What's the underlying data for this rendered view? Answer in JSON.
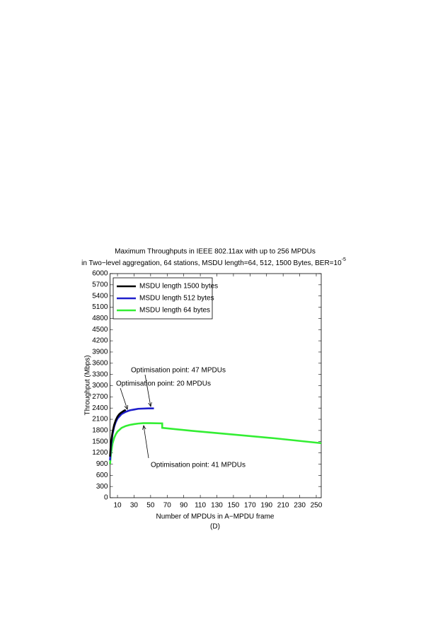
{
  "chart_data": {
    "type": "line",
    "title": "Maximum Throughputs in IEEE 802.11ax with up to 256 MPDUs",
    "subtitle": "in Two−level aggregation, 64 stations, MSDU length=64, 512, 1500 Bytes, BER=10",
    "subtitle_superscript": "-5",
    "x_label": "Number of MPDUs in A−MPDU frame",
    "y_label": "Throughput (Mbps)",
    "caption": "(D)",
    "xlim": [
      1,
      256
    ],
    "xticks": [
      10,
      30,
      50,
      70,
      90,
      110,
      130,
      150,
      170,
      190,
      210,
      230,
      250
    ],
    "ylim": [
      0,
      6000
    ],
    "yticks": [
      0,
      300,
      600,
      900,
      1200,
      1500,
      1800,
      2100,
      2400,
      2700,
      3000,
      3300,
      3600,
      3900,
      4200,
      4500,
      4800,
      5100,
      5400,
      5700,
      6000
    ],
    "legend": "upper left",
    "series": [
      {
        "name": "MSDU length 1500 bytes",
        "color": "#000000",
        "x": [
          1,
          2,
          4,
          6,
          8,
          10,
          12,
          14,
          16,
          18,
          20
        ],
        "values": [
          1100,
          1450,
          1750,
          1950,
          2080,
          2170,
          2230,
          2270,
          2300,
          2330,
          2350
        ]
      },
      {
        "name": "MSDU length 512 bytes",
        "color": "#1f1fcc",
        "x": [
          1,
          2,
          4,
          6,
          8,
          10,
          15,
          20,
          25,
          30,
          35,
          40,
          47,
          54
        ],
        "values": [
          1000,
          1350,
          1700,
          1900,
          2030,
          2120,
          2240,
          2300,
          2340,
          2360,
          2380,
          2385,
          2390,
          2390
        ]
      },
      {
        "name": "MSDU length 64 bytes",
        "color": "#33ee33",
        "x": [
          1,
          2,
          4,
          6,
          8,
          10,
          15,
          20,
          25,
          30,
          35,
          41,
          50,
          64,
          64,
          100,
          150,
          200,
          256
        ],
        "values": [
          900,
          1150,
          1450,
          1600,
          1700,
          1770,
          1870,
          1920,
          1950,
          1970,
          1985,
          1995,
          1995,
          1990,
          1870,
          1790,
          1690,
          1590,
          1460
        ]
      }
    ],
    "annotations": [
      "Optimisation point: 47 MPDUs",
      "Optimisation point: 20 MPDUs",
      "Optimisation point: 41 MPDUs"
    ]
  }
}
